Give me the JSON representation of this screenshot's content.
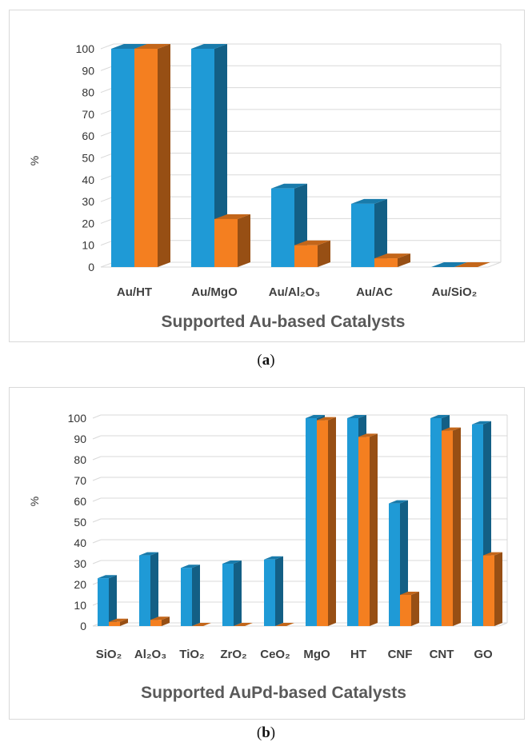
{
  "chart_data": [
    {
      "type": "bar",
      "title": "",
      "xlabel": "Supported Au-based Catalysts",
      "ylabel": "%",
      "ylim": [
        0,
        100
      ],
      "yticks": [
        "0",
        "10",
        "20",
        "30",
        "40",
        "50",
        "60",
        "70",
        "80",
        "90",
        "100"
      ],
      "categories": [
        "Au/HT",
        "Au/MgO",
        "Au/Al₂O₃",
        "Au/AC",
        "Au/SiO₂"
      ],
      "series": [
        {
          "values": [
            100,
            100,
            36,
            29,
            0
          ]
        },
        {
          "values": [
            100,
            22,
            10,
            4,
            0
          ]
        }
      ],
      "colors": [
        "#1f9ad6",
        "#f47f20"
      ],
      "grid": true,
      "style": "3d-clustered-column"
    },
    {
      "type": "bar",
      "title": "",
      "xlabel": "Supported AuPd-based Catalysts",
      "ylabel": "%",
      "ylim": [
        0,
        100
      ],
      "yticks": [
        "0",
        "10",
        "20",
        "30",
        "40",
        "50",
        "60",
        "70",
        "80",
        "90",
        "100"
      ],
      "categories": [
        "SiO₂",
        "Al₂O₃",
        "TiO₂",
        "ZrO₂",
        "CeO₂",
        "MgO",
        "HT",
        "CNF",
        "CNT",
        "GO"
      ],
      "series": [
        {
          "values": [
            23,
            34,
            28,
            30,
            32,
            100,
            100,
            59,
            100,
            97
          ]
        },
        {
          "values": [
            2,
            3,
            0,
            0,
            0,
            99,
            91,
            15,
            94,
            34
          ]
        }
      ],
      "colors": [
        "#1f9ad6",
        "#f47f20"
      ],
      "grid": true,
      "style": "3d-clustered-column"
    }
  ],
  "captions": {
    "a_open": "(",
    "a_letter": "a",
    "a_close": ")",
    "b_open": "(",
    "b_letter": "b",
    "b_close": ")"
  }
}
